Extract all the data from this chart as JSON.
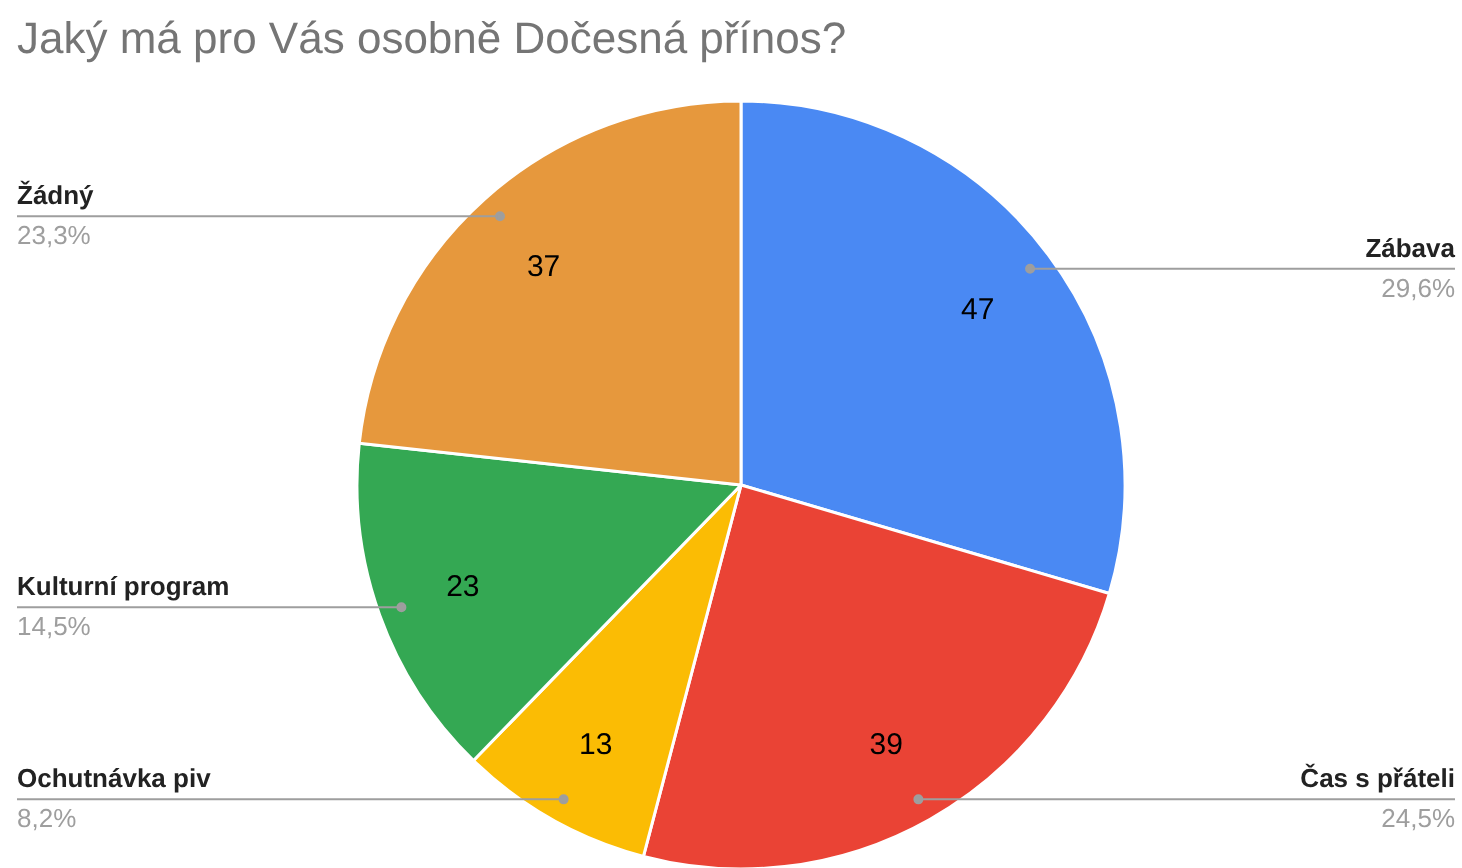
{
  "chart_data": {
    "type": "pie",
    "title": "Jaký má pro Vás osobně Dočesná přínos?",
    "categories": [
      "Zábava",
      "Čas s přáteli",
      "Ochutnávka piv",
      "Kulturní program",
      "Žádný"
    ],
    "values": [
      47,
      39,
      13,
      23,
      37
    ],
    "colors": [
      "#4a89f3",
      "#ea4335",
      "#fbbc04",
      "#34a853",
      "#e6983d"
    ],
    "data_labels": true,
    "annotations": [
      {
        "text": "29,6%",
        "x": "Zábava"
      },
      {
        "text": "24,5%",
        "x": "Čas s přáteli"
      },
      {
        "text": "8,2%",
        "x": "Ochutnávka piv"
      },
      {
        "text": "14,5%",
        "x": "Kulturní program"
      },
      {
        "text": "23,3%",
        "x": "Žádný"
      }
    ]
  }
}
